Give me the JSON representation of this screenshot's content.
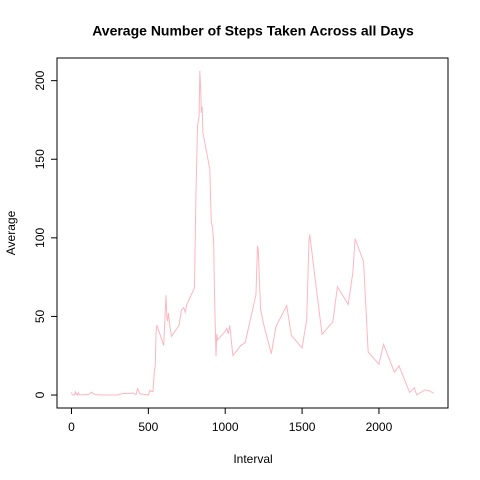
{
  "chart_data": {
    "type": "line",
    "title": "Average Number of Steps Taken Across all Days",
    "x_label": "Interval",
    "y_label": "Average",
    "x": [
      0,
      5,
      10,
      15,
      20,
      25,
      30,
      35,
      40,
      45,
      50,
      55,
      100,
      110,
      130,
      150,
      200,
      230,
      300,
      330,
      400,
      420,
      430,
      445,
      500,
      510,
      520,
      530,
      540,
      545,
      550,
      555,
      600,
      610,
      615,
      620,
      625,
      630,
      640,
      650,
      700,
      715,
      730,
      740,
      750,
      800,
      810,
      820,
      830,
      835,
      840,
      845,
      850,
      855,
      900,
      905,
      910,
      915,
      920,
      925,
      930,
      935,
      940,
      945,
      950,
      1000,
      1010,
      1020,
      1030,
      1040,
      1050,
      1100,
      1130,
      1200,
      1210,
      1215,
      1230,
      1250,
      1300,
      1330,
      1400,
      1430,
      1500,
      1530,
      1545,
      1550,
      1600,
      1630,
      1700,
      1730,
      1800,
      1830,
      1845,
      1900,
      1930,
      2000,
      2030,
      2100,
      2130,
      2200,
      2230,
      2245,
      2300,
      2330,
      2355
    ],
    "series": [
      {
        "name": "Average",
        "color": "#ffb6c1",
        "values": [
          1.7,
          0.3,
          0.1,
          0.2,
          0.1,
          2.1,
          0.5,
          0.9,
          0,
          1.5,
          0.3,
          0.1,
          0.3,
          0.2,
          1.8,
          0.3,
          0,
          0,
          0,
          0.9,
          1.2,
          0.3,
          4.1,
          0.8,
          0,
          3,
          2.3,
          2.1,
          16,
          18.3,
          39.5,
          44.5,
          31.5,
          53.8,
          63.5,
          50,
          47.1,
          52.2,
          44,
          37.4,
          44.4,
          54,
          55.7,
          52.7,
          57.6,
          68.2,
          129.4,
          171.2,
          177.3,
          206.2,
          195.9,
          179.6,
          183.4,
          167,
          143.5,
          124,
          109.1,
          108.1,
          103.7,
          95.9,
          66.2,
          45.2,
          24.8,
          38.8,
          35,
          40.6,
          42.4,
          38.9,
          44.3,
          34.3,
          25.1,
          31.4,
          33.4,
          63.9,
          94.8,
          92.8,
          54.5,
          45,
          26.3,
          43.6,
          56.9,
          38,
          30,
          47.8,
          98.7,
          102,
          62.1,
          38.6,
          46.6,
          68.9,
          57.6,
          77.7,
          99.5,
          84.9,
          27.3,
          19.6,
          32.3,
          14.6,
          18.6,
          1.6,
          4.6,
          0.1,
          3.3,
          2.6,
          1.1
        ]
      }
    ],
    "xlim": [
      -94.2,
      2449.2
    ],
    "xticks": [
      0,
      500,
      1000,
      1500,
      2000
    ],
    "ylim": [
      -8.25,
      214.42
    ],
    "yticks": [
      0,
      50,
      100,
      150,
      200
    ]
  }
}
